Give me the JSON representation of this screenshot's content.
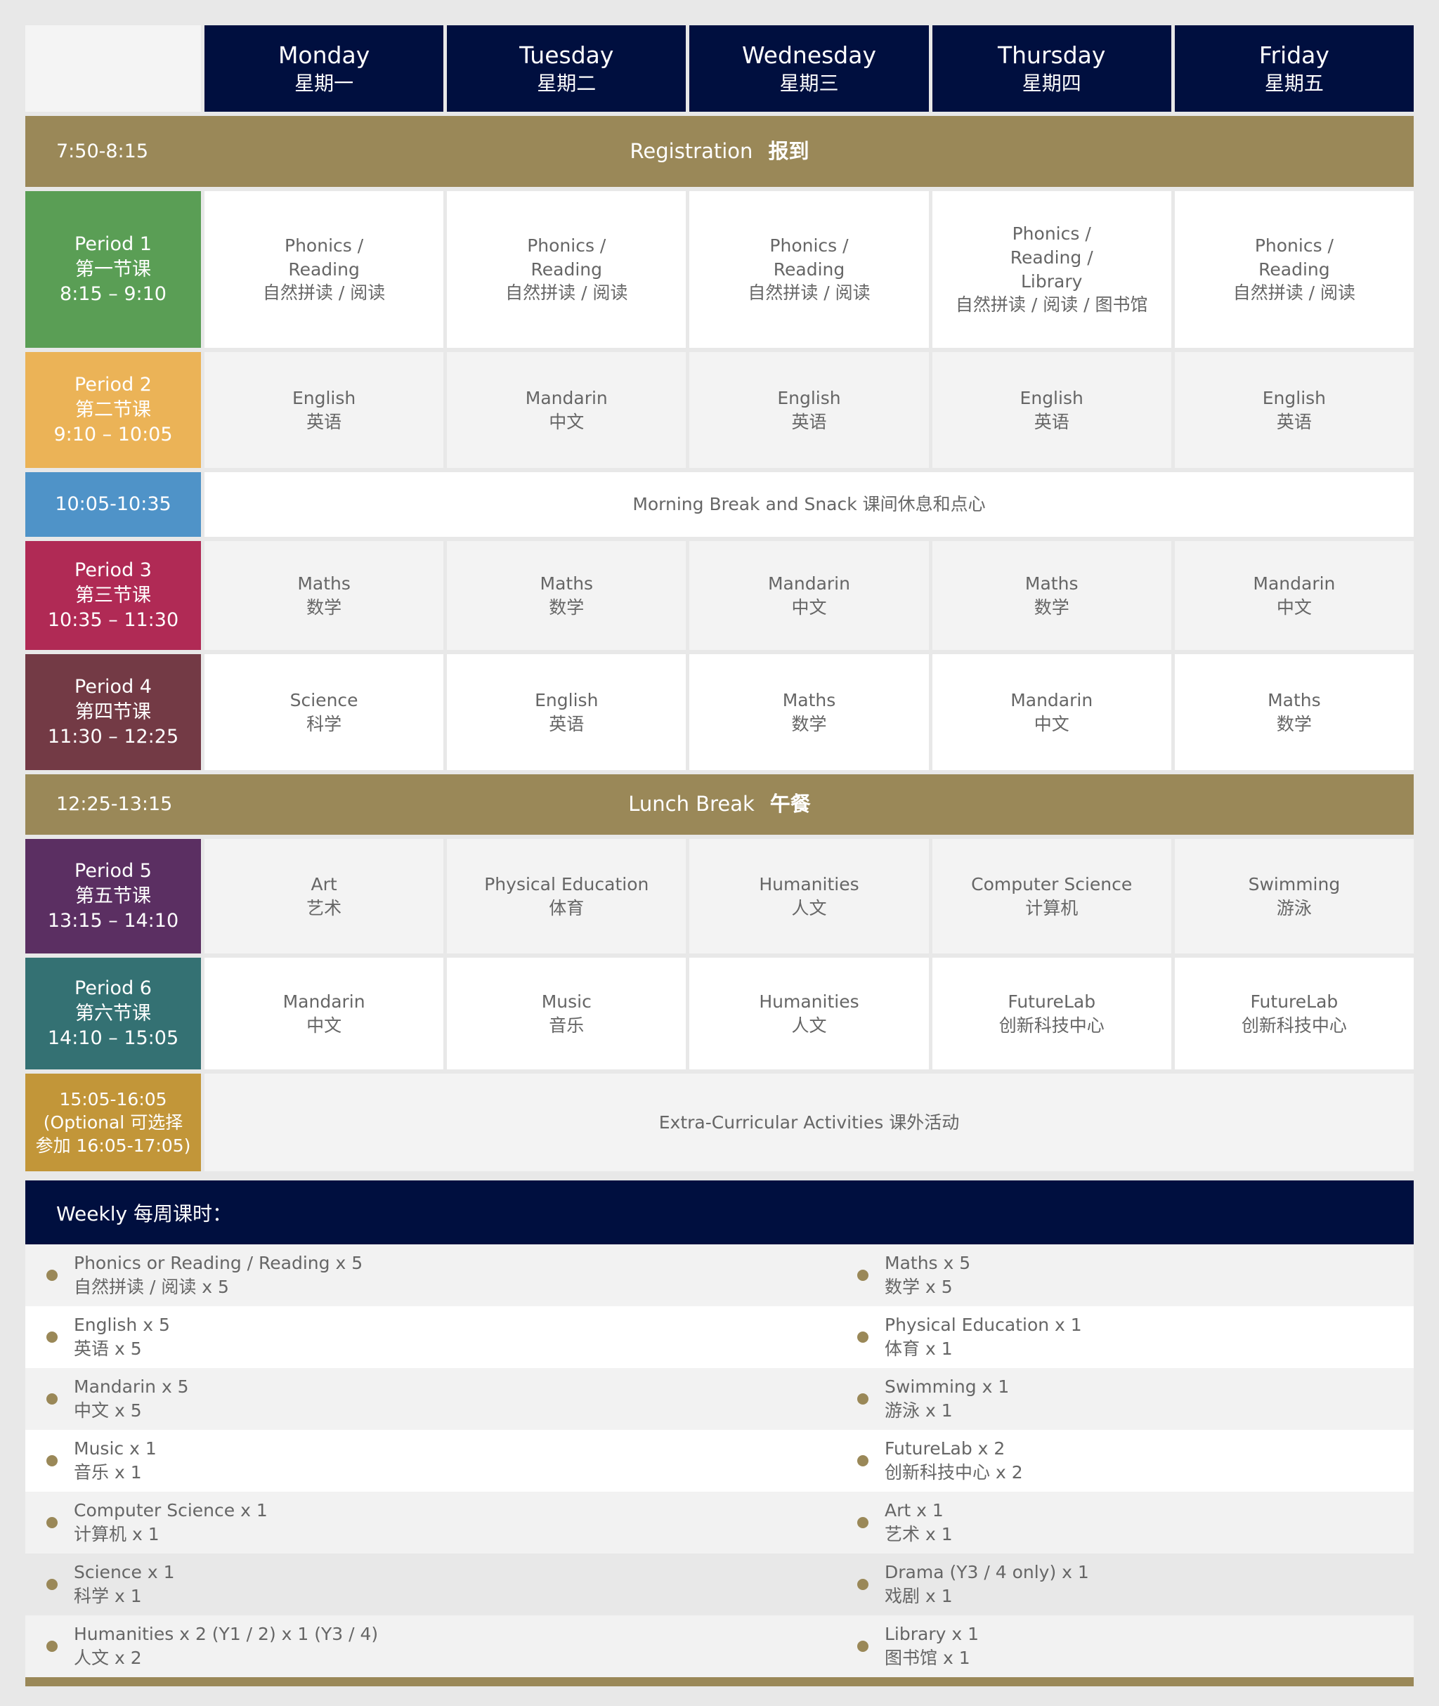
{
  "days": [
    {
      "en": "Monday",
      "zh": "星期一"
    },
    {
      "en": "Tuesday",
      "zh": "星期二"
    },
    {
      "en": "Wednesday",
      "zh": "星期三"
    },
    {
      "en": "Thursday",
      "zh": "星期四"
    },
    {
      "en": "Friday",
      "zh": "星期五"
    }
  ],
  "registration": {
    "time": "7:50-8:15",
    "en": "Registration",
    "zh": "报到"
  },
  "periods": [
    {
      "name": "Period 1",
      "zh": "第一节课",
      "time": "8:15 – 9:10",
      "color": "#5a9e55",
      "cells": [
        [
          "Phonics /",
          "Reading",
          "自然拼读 / 阅读"
        ],
        [
          "Phonics /",
          "Reading",
          "自然拼读 / 阅读"
        ],
        [
          "Phonics /",
          "Reading",
          "自然拼读 / 阅读"
        ],
        [
          "Phonics /",
          "Reading /",
          "Library",
          "自然拼读 / 阅读 / 图书馆"
        ],
        [
          "Phonics /",
          "Reading",
          "自然拼读 / 阅读"
        ]
      ]
    },
    {
      "name": "Period 2",
      "zh": "第二节课",
      "time": "9:10 – 10:05",
      "color": "#ebb357",
      "cells": [
        [
          "English",
          "英语"
        ],
        [
          "Mandarin",
          "中文"
        ],
        [
          "English",
          "英语"
        ],
        [
          "English",
          "英语"
        ],
        [
          "English",
          "英语"
        ]
      ]
    },
    {
      "name": "Period 3",
      "zh": "第三节课",
      "time": "10:35 – 11:30",
      "color": "#b02a55",
      "cells": [
        [
          "Maths",
          "数学"
        ],
        [
          "Maths",
          "数学"
        ],
        [
          "Mandarin",
          "中文"
        ],
        [
          "Maths",
          "数学"
        ],
        [
          "Mandarin",
          "中文"
        ]
      ]
    },
    {
      "name": "Period 4",
      "zh": "第四节课",
      "time": "11:30 – 12:25",
      "color": "#733a45",
      "cells": [
        [
          "Science",
          "科学"
        ],
        [
          "English",
          "英语"
        ],
        [
          "Maths",
          "数学"
        ],
        [
          "Mandarin",
          "中文"
        ],
        [
          "Maths",
          "数学"
        ]
      ]
    },
    {
      "name": "Period 5",
      "zh": "第五节课",
      "time": "13:15 – 14:10",
      "color": "#5b2f62",
      "cells": [
        [
          "Art",
          "艺术"
        ],
        [
          "Physical Education",
          "体育"
        ],
        [
          "Humanities",
          "人文"
        ],
        [
          "Computer Science",
          "计算机"
        ],
        [
          "Swimming",
          "游泳"
        ]
      ]
    },
    {
      "name": "Period 6",
      "zh": "第六节课",
      "time": "14:10 – 15:05",
      "color": "#347173",
      "cells": [
        [
          "Mandarin",
          "中文"
        ],
        [
          "Music",
          "音乐"
        ],
        [
          "Humanities",
          "人文"
        ],
        [
          "FutureLab",
          "创新科技中心"
        ],
        [
          "FutureLab",
          "创新科技中心"
        ]
      ]
    }
  ],
  "break": {
    "time": "10:05-10:35",
    "label": "Morning Break and Snack  课间休息和点心",
    "color": "#4f93c8"
  },
  "lunch": {
    "time": "12:25-13:15",
    "en": "Lunch Break",
    "zh": "午餐"
  },
  "eca": {
    "time": "15:05-16:05",
    "line2": "(Optional 可选择",
    "line3": "参加 16:05-17:05)",
    "label": "Extra-Curricular Activities  课外活动",
    "color": "#c29639"
  },
  "weekly": {
    "title": "Weekly 每周课时：",
    "rows": [
      [
        [
          "Phonics or Reading / Reading x 5",
          "自然拼读 / 阅读 x 5"
        ],
        [
          "Maths x 5",
          "数学 x 5"
        ]
      ],
      [
        [
          "English x 5",
          "英语 x 5"
        ],
        [
          "Physical Education x 1",
          "体育 x 1"
        ]
      ],
      [
        [
          "Mandarin x 5",
          "中文 x 5"
        ],
        [
          "Swimming x 1",
          "游泳 x 1"
        ]
      ],
      [
        [
          "Music x 1",
          "音乐 x 1"
        ],
        [
          "FutureLab x 2",
          "创新科技中心 x 2"
        ]
      ],
      [
        [
          "Computer Science x 1",
          "计算机 x 1"
        ],
        [
          "Art x 1",
          "艺术 x 1"
        ]
      ],
      [
        [
          "Science x 1",
          "科学 x 1"
        ],
        [
          "Drama (Y3 / 4 only) x 1",
          "戏剧 x 1"
        ]
      ],
      [
        [
          "Humanities x 2 (Y1 / 2) x 1 (Y3 / 4)",
          "人文 x 2"
        ],
        [
          "Library x 1",
          "图书馆 x 1"
        ]
      ]
    ]
  },
  "colors": {
    "navy": "#000f3f",
    "olive": "#9a8858"
  }
}
